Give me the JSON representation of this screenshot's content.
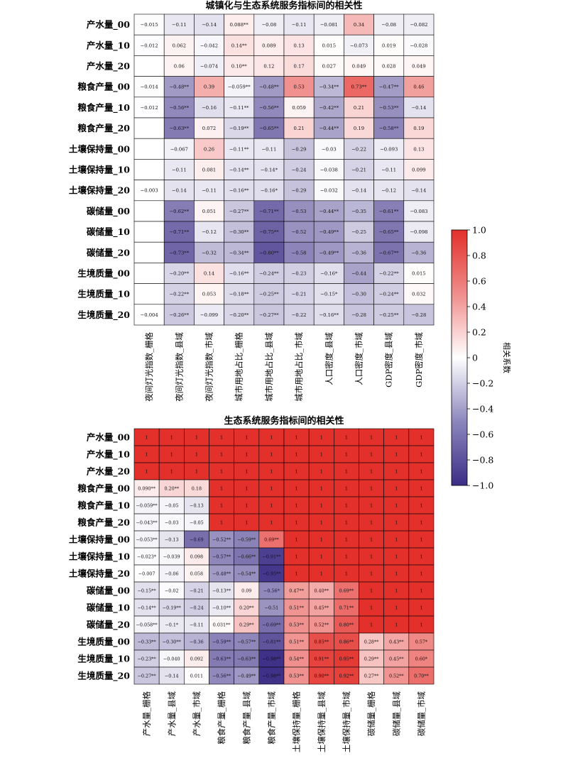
{
  "chart_data": [
    {
      "type": "heatmap",
      "title": "城镇化与生态系统服务指标间的相关性",
      "rows": [
        "产水量_00",
        "产水量_10",
        "产水量_20",
        "粮食产量_00",
        "粮食产量_10",
        "粮食产量_20",
        "土壤保持量_00",
        "土壤保持量_10",
        "土壤保持量_20",
        "碳储量_00",
        "碳储量_10",
        "碳储量_20",
        "生境质量_00",
        "生境质量_10",
        "生境质量_20"
      ],
      "columns": [
        "夜间灯光指数_栅格",
        "夜间灯光指数_县域",
        "夜间灯光指数_市域",
        "城市用地占比_栅格",
        "城市用地占比_县域",
        "城市用地占比_市域",
        "人口密度_县域",
        "人口密度_市域",
        "GDP密度_县域",
        "GDP密度_市域"
      ],
      "values": [
        [
          -0.015,
          -0.11,
          -0.14,
          0.088,
          -0.08,
          -0.11,
          -0.081,
          0.34,
          -0.08,
          -0.082
        ],
        [
          -0.012,
          0.062,
          -0.042,
          0.14,
          0.089,
          0.13,
          0.015,
          -0.073,
          0.019,
          -0.028
        ],
        [
          null,
          0.06,
          -0.074,
          0.1,
          0.12,
          0.17,
          0.027,
          0.049,
          0.028,
          0.049
        ],
        [
          -0.014,
          -0.48,
          0.39,
          -0.059,
          -0.48,
          0.53,
          -0.34,
          0.73,
          -0.47,
          0.46
        ],
        [
          -0.012,
          -0.56,
          -0.16,
          -0.11,
          -0.56,
          0.059,
          -0.42,
          0.21,
          -0.53,
          -0.14
        ],
        [
          null,
          -0.63,
          0.072,
          -0.19,
          -0.65,
          0.21,
          -0.44,
          0.19,
          -0.58,
          0.19
        ],
        [
          null,
          -0.067,
          0.26,
          -0.11,
          -0.11,
          -0.29,
          -0.03,
          -0.22,
          -0.093,
          0.13
        ],
        [
          null,
          -0.11,
          0.081,
          -0.14,
          -0.14,
          -0.24,
          -0.038,
          -0.21,
          -0.11,
          0.099
        ],
        [
          -0.003,
          -0.14,
          -0.11,
          -0.16,
          -0.16,
          -0.29,
          -0.032,
          -0.14,
          -0.12,
          -0.14
        ],
        [
          null,
          -0.62,
          0.051,
          -0.27,
          -0.71,
          -0.53,
          -0.44,
          -0.35,
          -0.61,
          -0.083
        ],
        [
          null,
          -0.71,
          -0.12,
          -0.3,
          -0.75,
          -0.52,
          -0.49,
          -0.25,
          -0.65,
          -0.098
        ],
        [
          null,
          -0.73,
          -0.32,
          -0.34,
          -0.8,
          -0.58,
          -0.49,
          -0.36,
          -0.67,
          -0.36
        ],
        [
          null,
          -0.2,
          0.14,
          -0.16,
          -0.24,
          -0.23,
          -0.16,
          -0.44,
          -0.22,
          0.015
        ],
        [
          null,
          -0.22,
          0.053,
          -0.18,
          -0.25,
          -0.21,
          -0.15,
          -0.3,
          -0.24,
          0.032
        ],
        [
          -0.004,
          -0.26,
          -0.099,
          -0.2,
          -0.27,
          -0.22,
          -0.16,
          -0.28,
          -0.25,
          -0.28
        ]
      ],
      "labels": [
        [
          "−0.015",
          "−0.11",
          "−0.14",
          "0.088**",
          "−0.08",
          "−0.11",
          "−0.081",
          "0.34",
          "−0.08",
          "−0.082"
        ],
        [
          "−0.012",
          "0.062",
          "−0.042",
          "0.14**",
          "0.089",
          "0.13",
          "0.015",
          "−0.073",
          "0.019",
          "−0.028"
        ],
        [
          "",
          "0.06",
          "−0.074",
          "0.10**",
          "0.12",
          "0.17",
          "0.027",
          "0.049",
          "0.028",
          "0.049"
        ],
        [
          "−0.014",
          "−0.48**",
          "0.39",
          "−0.059**",
          "−0.48**",
          "0.53",
          "−0.34**",
          "0.73**",
          "−0.47**",
          "0.46"
        ],
        [
          "−0.012",
          "−0.56**",
          "−0.16",
          "−0.11**",
          "−0.56**",
          "0.059",
          "−0.42**",
          "0.21",
          "−0.53**",
          "−0.14"
        ],
        [
          "",
          "−0.63**",
          "0.072",
          "−0.19**",
          "−0.65**",
          "0.21",
          "−0.44**",
          "0.19",
          "−0.58**",
          "0.19"
        ],
        [
          "",
          "−0.067",
          "0.26",
          "−0.11**",
          "−0.11",
          "−0.29",
          "−0.03",
          "−0.22",
          "−0.093",
          "0.13"
        ],
        [
          "",
          "−0.11",
          "0.081",
          "−0.14**",
          "−0.14*",
          "−0.24",
          "−0.038",
          "−0.21",
          "−0.11",
          "0.099"
        ],
        [
          "−0.003",
          "−0.14",
          "−0.11",
          "−0.16**",
          "−0.16*",
          "−0.29",
          "−0.032",
          "−0.14",
          "−0.12",
          "−0.14"
        ],
        [
          "",
          "−0.62**",
          "0.051",
          "−0.27**",
          "−0.71**",
          "−0.53",
          "−0.44**",
          "−0.35",
          "−0.61**",
          "−0.083"
        ],
        [
          "",
          "−0.71**",
          "−0.12",
          "−0.30**",
          "−0.75**",
          "−0.52",
          "−0.49**",
          "−0.25",
          "−0.65**",
          "−0.098"
        ],
        [
          "",
          "−0.73**",
          "−0.32",
          "−0.34**",
          "−0.80**",
          "−0.58",
          "−0.49**",
          "−0.36",
          "−0.67**",
          "−0.36"
        ],
        [
          "",
          "−0.20**",
          "0.14",
          "−0.16**",
          "−0.24**",
          "−0.23",
          "−0.16*",
          "−0.44",
          "−0.22**",
          "0.015"
        ],
        [
          "",
          "−0.22**",
          "0.053",
          "−0.18**",
          "−0.25**",
          "−0.21",
          "−0.15*",
          "−0.30",
          "−0.24**",
          "0.032"
        ],
        [
          "−0.004",
          "−0.26**",
          "−0.099",
          "−0.20**",
          "−0.27**",
          "−0.22",
          "−0.16**",
          "−0.28",
          "−0.25**",
          "−0.28"
        ]
      ],
      "vmin": -1,
      "vmax": 1
    },
    {
      "type": "heatmap",
      "title": "生态系统服务指标间的相关性",
      "rows": [
        "产水量_00",
        "产水量_10",
        "产水量_20",
        "粮食产量_00",
        "粮食产量_10",
        "粮食产量_20",
        "土壤保持量_00",
        "土壤保持量_10",
        "土壤保持量_20",
        "碳储量_00",
        "碳储量_10",
        "碳储量_20",
        "生境质量_00",
        "生境质量_10",
        "生境质量_20"
      ],
      "columns": [
        "产水量_栅格",
        "产水量_县域",
        "产水量_市域",
        "粮食产量_栅格",
        "粮食产量_县域",
        "粮食产量_市域",
        "土壤保持量_栅格",
        "土壤保持量_县域",
        "土壤保持量_市域",
        "碳储量_栅格",
        "碳储量_县域",
        "碳储量_市域"
      ],
      "values": [
        [
          1,
          1,
          1,
          1,
          1,
          1,
          1,
          1,
          1,
          1,
          1,
          1
        ],
        [
          1,
          1,
          1,
          1,
          1,
          1,
          1,
          1,
          1,
          1,
          1,
          1
        ],
        [
          1,
          1,
          1,
          1,
          1,
          1,
          1,
          1,
          1,
          1,
          1,
          1
        ],
        [
          0.09,
          0.2,
          0.18,
          1,
          1,
          1,
          1,
          1,
          1,
          1,
          1,
          1
        ],
        [
          -0.059,
          -0.05,
          -0.13,
          1,
          1,
          1,
          1,
          1,
          1,
          1,
          1,
          1
        ],
        [
          -0.043,
          -0.03,
          -0.05,
          1,
          1,
          1,
          1,
          1,
          1,
          1,
          1,
          1
        ],
        [
          -0.053,
          -0.13,
          -0.69,
          -0.52,
          -0.59,
          0.69,
          1,
          1,
          1,
          1,
          1,
          1
        ],
        [
          -0.023,
          -0.039,
          0.098,
          -0.57,
          -0.66,
          -0.91,
          1,
          1,
          1,
          1,
          1,
          1
        ],
        [
          -0.007,
          -0.06,
          0.058,
          -0.48,
          -0.54,
          -0.95,
          1,
          1,
          1,
          1,
          1,
          1
        ],
        [
          -0.15,
          -0.02,
          -0.21,
          -0.13,
          0.09,
          -0.56,
          0.47,
          0.4,
          0.69,
          1,
          1,
          1
        ],
        [
          -0.14,
          -0.19,
          -0.24,
          -0.1,
          0.2,
          -0.51,
          0.51,
          0.45,
          0.71,
          1,
          1,
          1
        ],
        [
          -0.058,
          -0.1,
          -0.11,
          0.031,
          0.29,
          -0.69,
          0.53,
          0.52,
          0.8,
          1,
          1,
          1
        ],
        [
          -0.33,
          -0.3,
          -0.36,
          -0.59,
          -0.57,
          -0.81,
          0.51,
          0.85,
          0.86,
          0.28,
          0.43,
          0.57
        ],
        [
          -0.23,
          -0.04,
          0.092,
          -0.63,
          -0.63,
          -0.98,
          0.54,
          0.91,
          0.95,
          0.29,
          0.45,
          0.6
        ],
        [
          -0.27,
          -0.14,
          0.011,
          -0.56,
          -0.49,
          -0.98,
          0.53,
          0.9,
          0.92,
          0.27,
          0.52,
          0.7
        ]
      ],
      "labels": [
        [
          "1",
          "1",
          "1",
          "1",
          "1",
          "1",
          "1",
          "1",
          "1",
          "1",
          "1",
          "1"
        ],
        [
          "1",
          "1",
          "1",
          "1",
          "1",
          "1",
          "1",
          "1",
          "1",
          "1",
          "1",
          "1"
        ],
        [
          "1",
          "1",
          "1",
          "1",
          "1",
          "1",
          "1",
          "1",
          "1",
          "1",
          "1",
          "1"
        ],
        [
          "0.090**",
          "0.20**",
          "0.18",
          "1",
          "1",
          "1",
          "1",
          "1",
          "1",
          "1",
          "1",
          "1"
        ],
        [
          "−0.059**",
          "−0.05",
          "−0.13",
          "1",
          "1",
          "1",
          "1",
          "1",
          "1",
          "1",
          "1",
          "1"
        ],
        [
          "−0.043**",
          "−0.03",
          "−0.05",
          "1",
          "1",
          "1",
          "1",
          "1",
          "1",
          "1",
          "1",
          "1"
        ],
        [
          "−0.053**",
          "−0.13",
          "−0.69",
          "−0.52**",
          "−0.59**",
          "0.69**",
          "1",
          "1",
          "1",
          "1",
          "1",
          "1"
        ],
        [
          "−0.023*",
          "−0.039",
          "0.098",
          "−0.57**",
          "−0.66**",
          "−0.91**",
          "1",
          "1",
          "1",
          "1",
          "1",
          "1"
        ],
        [
          "−0.007",
          "−0.06",
          "0.058",
          "−0.48**",
          "−0.54**",
          "−0.95**",
          "1",
          "1",
          "1",
          "1",
          "1",
          "1"
        ],
        [
          "−0.15**",
          "−0.02",
          "−0.21",
          "−0.13**",
          "0.09",
          "−0.56*",
          "0.47**",
          "0.40**",
          "0.69**",
          "1",
          "1",
          "1"
        ],
        [
          "−0.14**",
          "−0.19**",
          "−0.24",
          "−0.10**",
          "0.20**",
          "−0.51",
          "0.51**",
          "0.45**",
          "0.71**",
          "1",
          "1",
          "1"
        ],
        [
          "−0.058**",
          "−0.1*",
          "−0.11",
          "0.031**",
          "0.29**",
          "−0.69**",
          "0.53**",
          "0.52**",
          "0.80**",
          "1",
          "1",
          "1"
        ],
        [
          "−0.33**",
          "−0.30**",
          "−0.36",
          "−0.59**",
          "−0.57**",
          "−0.81**",
          "0.51**",
          "0.85**",
          "0.86**",
          "0.28**",
          "0.43**",
          "0.57*"
        ],
        [
          "−0.23**",
          "−0.040",
          "0.092",
          "−0.63**",
          "−0.63**",
          "−0.98**",
          "0.54**",
          "0.91**",
          "0.95**",
          "0.29**",
          "0.45**",
          "0.60*"
        ],
        [
          "−0.27**",
          "−0.14",
          "0.011",
          "−0.56**",
          "−0.49**",
          "−0.98**",
          "0.53**",
          "0.90**",
          "0.92**",
          "0.27**",
          "0.52**",
          "0.70**"
        ]
      ],
      "vmin": -1,
      "vmax": 1
    }
  ],
  "colorbar": {
    "label": "相关系数",
    "ticks": [
      "1.0",
      "0.8",
      "0.6",
      "0.4",
      "0.2",
      "0",
      "−0.2",
      "−0.4",
      "−0.6",
      "−0.8",
      "−1.0"
    ],
    "tick_values": [
      1.0,
      0.8,
      0.6,
      0.4,
      0.2,
      0,
      -0.2,
      -0.4,
      -0.6,
      -0.8,
      -1.0
    ],
    "colors": {
      "negative": "#3b2d86",
      "zero": "#ffffff",
      "positive": "#e3302b"
    }
  }
}
